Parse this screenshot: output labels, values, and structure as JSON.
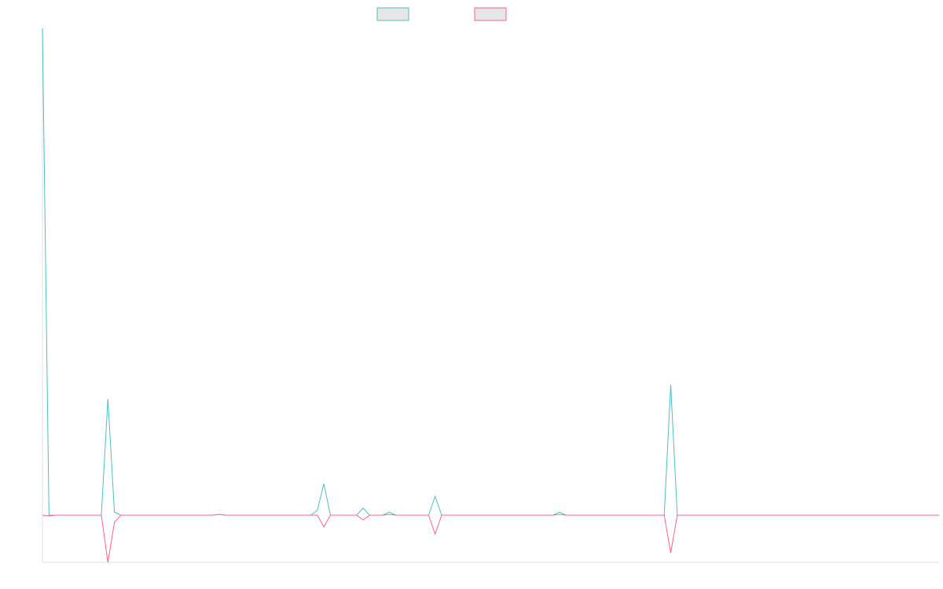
{
  "chart_data": {
    "type": "line",
    "series": [
      {
        "color": "#4bc0c0",
        "values": [
          620,
          0,
          0,
          0,
          0,
          0,
          0,
          0,
          0,
          0,
          148,
          4,
          0,
          0,
          0,
          0,
          0,
          0,
          0,
          0,
          0,
          0,
          0,
          0,
          0,
          0,
          0,
          1,
          0,
          0,
          0,
          0,
          0,
          0,
          0,
          0,
          0,
          0,
          0,
          0,
          0,
          0,
          6,
          40,
          0,
          0,
          0,
          0,
          0,
          9,
          0,
          0,
          0,
          4,
          0,
          0,
          0,
          0,
          0,
          0,
          24,
          0,
          0,
          0,
          0,
          0,
          0,
          0,
          0,
          0,
          0,
          0,
          0,
          0,
          0,
          0,
          0,
          0,
          0,
          4,
          0,
          0,
          0,
          0,
          0,
          0,
          0,
          0,
          0,
          0,
          0,
          0,
          0,
          0,
          0,
          0,
          166,
          0,
          0,
          0,
          0,
          0,
          0,
          0,
          0,
          0,
          0,
          0,
          0,
          0,
          0,
          0,
          0,
          0,
          0,
          0,
          0,
          0,
          0,
          0,
          0,
          0,
          0,
          0,
          0,
          0,
          0,
          0,
          0,
          0,
          0,
          0,
          0,
          0,
          0,
          0,
          0,
          0
        ]
      },
      {
        "color": "#ff6384",
        "values": [
          0,
          -1,
          0,
          0,
          0,
          0,
          0,
          0,
          0,
          0,
          -60,
          -9,
          0,
          0,
          0,
          0,
          0,
          0,
          0,
          0,
          0,
          0,
          0,
          0,
          0,
          0,
          0,
          1,
          0,
          0,
          0,
          0,
          0,
          0,
          0,
          0,
          0,
          0,
          0,
          0,
          0,
          0,
          0,
          -15,
          0,
          0,
          0,
          0,
          0,
          -6,
          0,
          0,
          0,
          1,
          0,
          0,
          0,
          0,
          0,
          0,
          -24,
          0,
          0,
          0,
          0,
          0,
          0,
          0,
          0,
          0,
          0,
          0,
          0,
          0,
          0,
          0,
          0,
          0,
          0,
          1,
          0,
          0,
          0,
          0,
          0,
          0,
          0,
          0,
          0,
          0,
          0,
          0,
          0,
          0,
          0,
          0,
          -48,
          0,
          0,
          0,
          0,
          0,
          0,
          0,
          0,
          0,
          0,
          0,
          0,
          0,
          0,
          0,
          0,
          0,
          0,
          0,
          0,
          0,
          0,
          0,
          0,
          0,
          0,
          0,
          0,
          0,
          0,
          0,
          0,
          0,
          0,
          0,
          0,
          0,
          0,
          0,
          0,
          0
        ]
      }
    ],
    "ylim": [
      -60,
      620
    ]
  }
}
